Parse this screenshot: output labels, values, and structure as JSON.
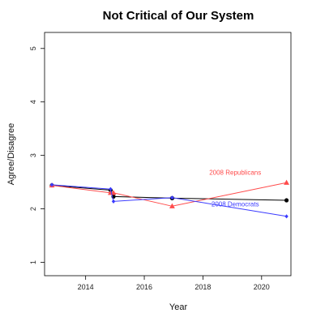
{
  "chart_data": {
    "type": "line",
    "title": "Not Critical of Our System",
    "xlabel": "Year",
    "ylabel": "Agree/Disagree",
    "xlim": [
      2012.6,
      2021.0
    ],
    "ylim": [
      0.75,
      5.3
    ],
    "xticks": [
      2014,
      2016,
      2018,
      2020
    ],
    "yticks": [
      1,
      2,
      3,
      4,
      5
    ],
    "grid": false,
    "series": [
      {
        "key": "overall",
        "color": "#000000",
        "marker": "circle",
        "points": [
          [
            2012.85,
            2.44
          ],
          [
            2014.85,
            2.35
          ],
          [
            2014.95,
            2.23
          ],
          [
            2016.95,
            2.2
          ],
          [
            2020.85,
            2.16
          ]
        ]
      },
      {
        "key": "republicans",
        "name": "2008 Republicans",
        "color": "#ff4b4b",
        "marker": "triangle",
        "points": [
          [
            2012.85,
            2.44
          ],
          [
            2014.85,
            2.3
          ],
          [
            2014.95,
            2.3
          ],
          [
            2016.95,
            2.05
          ],
          [
            2020.85,
            2.49
          ]
        ]
      },
      {
        "key": "democrats",
        "name": "2008 Democrats",
        "color": "#3b3bff",
        "marker": "diamond",
        "points": [
          [
            2012.85,
            2.45
          ],
          [
            2014.85,
            2.37
          ],
          [
            2014.95,
            2.14
          ],
          [
            2016.95,
            2.21
          ],
          [
            2020.85,
            1.86
          ]
        ]
      }
    ],
    "annotations": [
      {
        "text": "2008 Republicans",
        "color": "#ff4b4b",
        "x": 2019.1,
        "y": 2.64
      },
      {
        "text": "2008 Democrats",
        "color": "#3b3bff",
        "x": 2019.1,
        "y": 2.05
      }
    ]
  }
}
